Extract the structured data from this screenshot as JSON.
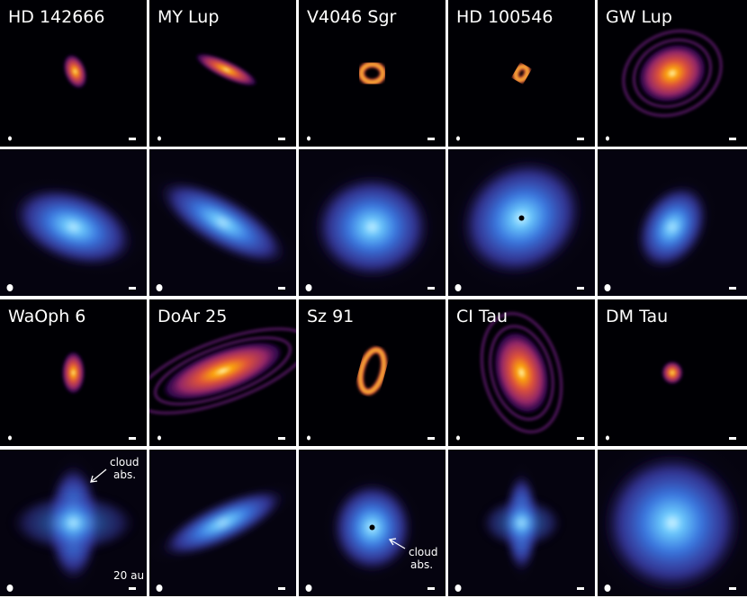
{
  "figure": {
    "targets": [
      "HD 142666",
      "MY Lup",
      "V4046 Sgr",
      "HD 100546",
      "GW Lup",
      "WaOph 6",
      "DoAr 25",
      "Sz 91",
      "CI Tau",
      "DM Tau"
    ],
    "annotations": [
      {
        "lines": [
          "cloud",
          "abs."
        ]
      },
      {
        "lines": [
          "cloud",
          "abs."
        ]
      }
    ],
    "scale_bar": "20 au"
  }
}
